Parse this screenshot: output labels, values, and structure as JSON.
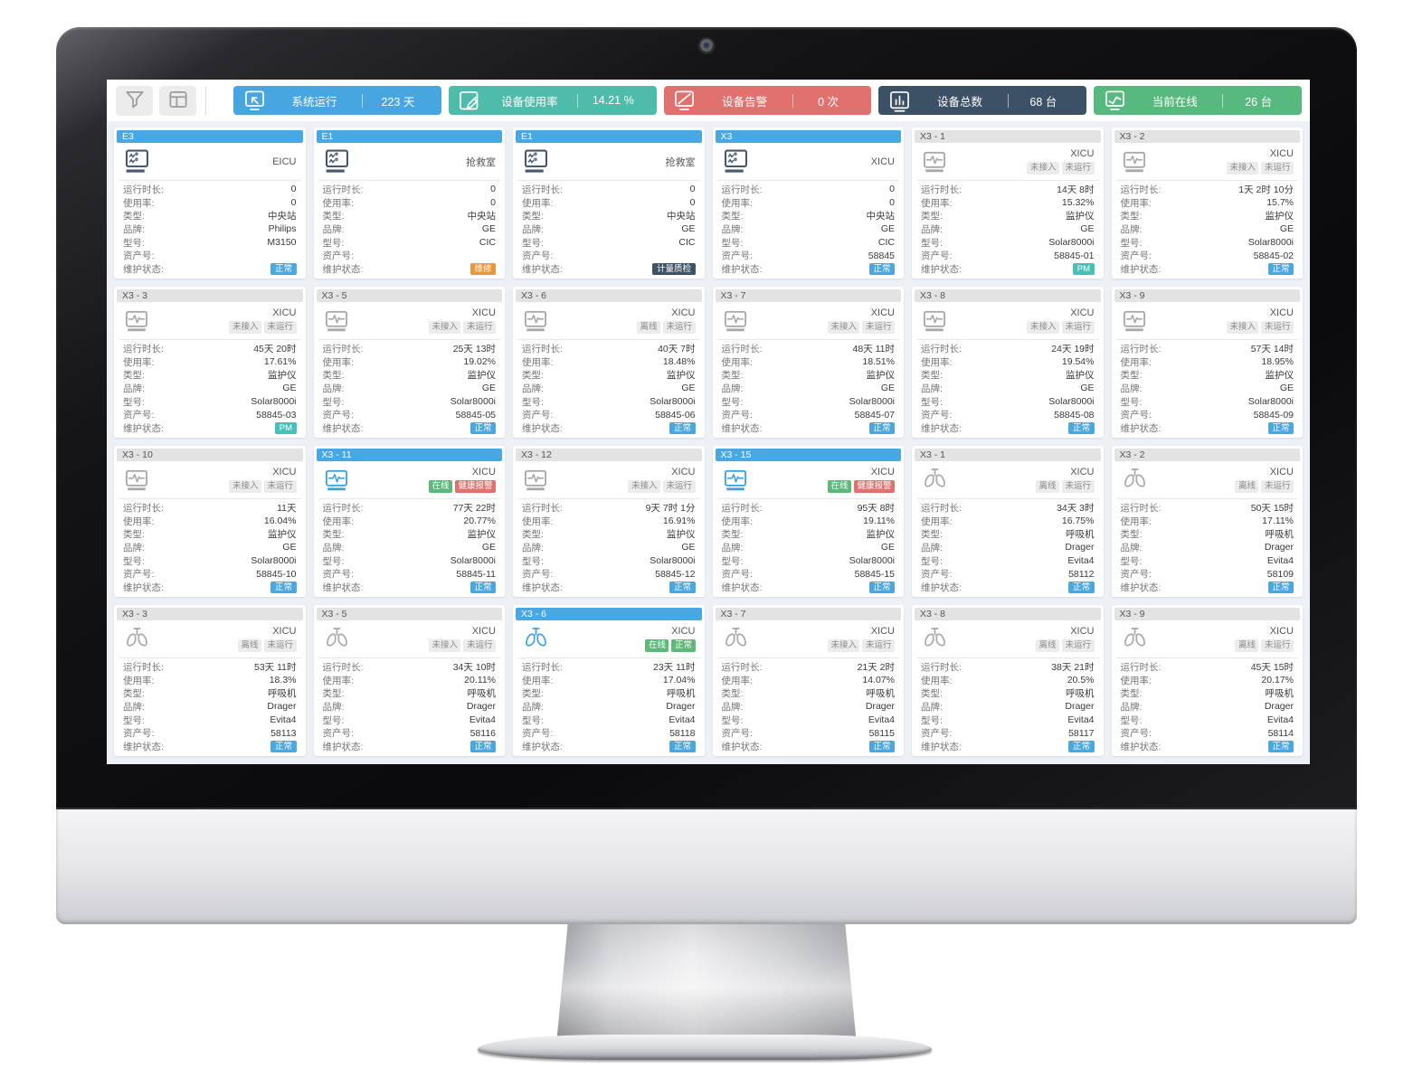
{
  "colors": {
    "accent_blue": "#49a7e1",
    "teal": "#4fbcab",
    "red": "#e0716f",
    "navy": "#3d5166",
    "green": "#58b97e",
    "orange": "#e8973d",
    "pm_teal": "#45c1b7"
  },
  "toolbar": {
    "buttons": [
      {
        "name": "filter",
        "icon": "filter"
      },
      {
        "name": "layout",
        "icon": "layout"
      }
    ],
    "stats": [
      {
        "icon": "system-run",
        "label": "系统运行",
        "value": "223 天",
        "color": "#47a5e0"
      },
      {
        "icon": "usage-rate",
        "label": "设备使用率",
        "value": "14.21 %",
        "color": "#4fbcab"
      },
      {
        "icon": "device-alarm",
        "label": "设备告警",
        "value": "0 次",
        "color": "#e0716f"
      },
      {
        "icon": "device-total",
        "label": "设备总数",
        "value": "68 台",
        "color": "#3d5166"
      },
      {
        "icon": "current-online",
        "label": "当前在线",
        "value": "26 台",
        "color": "#58b97e"
      }
    ]
  },
  "field_labels": [
    "运行时长:",
    "使用率:",
    "类型:",
    "品牌:",
    "型号:",
    "资产号:",
    "维护状态:"
  ],
  "cards": [
    {
      "id": "E3",
      "header_style": "blue",
      "icon": "central-station",
      "icon_style": "navy",
      "location": "EICU",
      "badges": [],
      "values": [
        "0",
        "0",
        "中央站",
        "Philips",
        "M3150",
        ""
      ],
      "status": {
        "text": "正常",
        "type": "normal"
      }
    },
    {
      "id": "E1",
      "header_style": "blue",
      "icon": "central-station",
      "icon_style": "navy",
      "location": "抢救室",
      "badges": [],
      "values": [
        "0",
        "0",
        "中央站",
        "GE",
        "CIC",
        ""
      ],
      "status": {
        "text": "维修",
        "type": "repair"
      }
    },
    {
      "id": "E1",
      "header_style": "blue",
      "icon": "central-station",
      "icon_style": "navy",
      "location": "抢救室",
      "badges": [],
      "values": [
        "0",
        "0",
        "中央站",
        "GE",
        "CIC",
        ""
      ],
      "status": {
        "text": "计量质检",
        "type": "metrology"
      }
    },
    {
      "id": "X3",
      "header_style": "blue",
      "icon": "central-station",
      "icon_style": "navy",
      "location": "XICU",
      "badges": [],
      "values": [
        "0",
        "0",
        "中央站",
        "GE",
        "CIC",
        "58845"
      ],
      "status": {
        "text": "正常",
        "type": "normal"
      }
    },
    {
      "id": "X3 - 1",
      "header_style": "gray",
      "icon": "patient-monitor",
      "icon_style": "gray",
      "location": "XICU",
      "badges": [
        {
          "text": "未接入",
          "type": "gray"
        },
        {
          "text": "未运行",
          "type": "gray"
        }
      ],
      "values": [
        "14天 8时",
        "15.32%",
        "监护仪",
        "GE",
        "Solar8000i",
        "58845-01"
      ],
      "status": {
        "text": "PM",
        "type": "pm"
      }
    },
    {
      "id": "X3 - 2",
      "header_style": "gray",
      "icon": "patient-monitor",
      "icon_style": "gray",
      "location": "XICU",
      "badges": [
        {
          "text": "未接入",
          "type": "gray"
        },
        {
          "text": "未运行",
          "type": "gray"
        }
      ],
      "values": [
        "1天 2时 10分",
        "15.7%",
        "监护仪",
        "GE",
        "Solar8000i",
        "58845-02"
      ],
      "status": {
        "text": "正常",
        "type": "normal"
      }
    },
    {
      "id": "X3 - 3",
      "header_style": "gray",
      "icon": "patient-monitor",
      "icon_style": "gray",
      "location": "XICU",
      "badges": [
        {
          "text": "未接入",
          "type": "gray"
        },
        {
          "text": "未运行",
          "type": "gray"
        }
      ],
      "values": [
        "45天 20时",
        "17.61%",
        "监护仪",
        "GE",
        "Solar8000i",
        "58845-03"
      ],
      "status": {
        "text": "PM",
        "type": "pm"
      }
    },
    {
      "id": "X3 - 5",
      "header_style": "gray",
      "icon": "patient-monitor",
      "icon_style": "gray",
      "location": "XICU",
      "badges": [
        {
          "text": "未接入",
          "type": "gray"
        },
        {
          "text": "未运行",
          "type": "gray"
        }
      ],
      "values": [
        "25天 13时",
        "19.02%",
        "监护仪",
        "GE",
        "Solar8000i",
        "58845-05"
      ],
      "status": {
        "text": "正常",
        "type": "normal"
      }
    },
    {
      "id": "X3 - 6",
      "header_style": "gray",
      "icon": "patient-monitor",
      "icon_style": "gray",
      "location": "XICU",
      "badges": [
        {
          "text": "离线",
          "type": "gray"
        },
        {
          "text": "未运行",
          "type": "gray"
        }
      ],
      "values": [
        "40天 7时",
        "18.48%",
        "监护仪",
        "GE",
        "Solar8000i",
        "58845-06"
      ],
      "status": {
        "text": "正常",
        "type": "normal"
      }
    },
    {
      "id": "X3 - 7",
      "header_style": "gray",
      "icon": "patient-monitor",
      "icon_style": "gray",
      "location": "XICU",
      "badges": [
        {
          "text": "未接入",
          "type": "gray"
        },
        {
          "text": "未运行",
          "type": "gray"
        }
      ],
      "values": [
        "48天 11时",
        "18.51%",
        "监护仪",
        "GE",
        "Solar8000i",
        "58845-07"
      ],
      "status": {
        "text": "正常",
        "type": "normal"
      }
    },
    {
      "id": "X3 - 8",
      "header_style": "gray",
      "icon": "patient-monitor",
      "icon_style": "gray",
      "location": "XICU",
      "badges": [
        {
          "text": "未接入",
          "type": "gray"
        },
        {
          "text": "未运行",
          "type": "gray"
        }
      ],
      "values": [
        "24天 19时",
        "19.54%",
        "监护仪",
        "GE",
        "Solar8000i",
        "58845-08"
      ],
      "status": {
        "text": "正常",
        "type": "normal"
      }
    },
    {
      "id": "X3 - 9",
      "header_style": "gray",
      "icon": "patient-monitor",
      "icon_style": "gray",
      "location": "XICU",
      "badges": [
        {
          "text": "未接入",
          "type": "gray"
        },
        {
          "text": "未运行",
          "type": "gray"
        }
      ],
      "values": [
        "57天 14时",
        "18.95%",
        "监护仪",
        "GE",
        "Solar8000i",
        "58845-09"
      ],
      "status": {
        "text": "正常",
        "type": "normal"
      }
    },
    {
      "id": "X3 - 10",
      "header_style": "gray",
      "icon": "patient-monitor",
      "icon_style": "gray",
      "location": "XICU",
      "badges": [
        {
          "text": "未接入",
          "type": "gray"
        },
        {
          "text": "未运行",
          "type": "gray"
        }
      ],
      "values": [
        "11天",
        "16.04%",
        "监护仪",
        "GE",
        "Solar8000i",
        "58845-10"
      ],
      "status": {
        "text": "正常",
        "type": "normal"
      }
    },
    {
      "id": "X3 - 11",
      "header_style": "blue",
      "icon": "patient-monitor",
      "icon_style": "blue",
      "location": "XICU",
      "badges": [
        {
          "text": "在线",
          "type": "green"
        },
        {
          "text": "健康报警",
          "type": "red"
        }
      ],
      "values": [
        "77天 22时",
        "20.77%",
        "监护仪",
        "GE",
        "Solar8000i",
        "58845-11"
      ],
      "status": {
        "text": "正常",
        "type": "normal"
      }
    },
    {
      "id": "X3 - 12",
      "header_style": "gray",
      "icon": "patient-monitor",
      "icon_style": "gray",
      "location": "XICU",
      "badges": [
        {
          "text": "未接入",
          "type": "gray"
        },
        {
          "text": "未运行",
          "type": "gray"
        }
      ],
      "values": [
        "9天 7时 1分",
        "16.91%",
        "监护仪",
        "GE",
        "Solar8000i",
        "58845-12"
      ],
      "status": {
        "text": "正常",
        "type": "normal"
      }
    },
    {
      "id": "X3 - 15",
      "header_style": "blue",
      "icon": "patient-monitor",
      "icon_style": "blue",
      "location": "XICU",
      "badges": [
        {
          "text": "在线",
          "type": "green"
        },
        {
          "text": "健康报警",
          "type": "red"
        }
      ],
      "values": [
        "95天 8时",
        "19.11%",
        "监护仪",
        "GE",
        "Solar8000i",
        "58845-15"
      ],
      "status": {
        "text": "正常",
        "type": "normal"
      }
    },
    {
      "id": "X3 - 1",
      "header_style": "gray",
      "icon": "ventilator",
      "icon_style": "gray",
      "location": "XICU",
      "badges": [
        {
          "text": "离线",
          "type": "gray"
        },
        {
          "text": "未运行",
          "type": "gray"
        }
      ],
      "values": [
        "34天 3时",
        "16.75%",
        "呼吸机",
        "Drager",
        "Evita4",
        "58112"
      ],
      "status": {
        "text": "正常",
        "type": "normal"
      }
    },
    {
      "id": "X3 - 2",
      "header_style": "gray",
      "icon": "ventilator",
      "icon_style": "gray",
      "location": "XICU",
      "badges": [
        {
          "text": "离线",
          "type": "gray"
        },
        {
          "text": "未运行",
          "type": "gray"
        }
      ],
      "values": [
        "50天 15时",
        "17.11%",
        "呼吸机",
        "Drager",
        "Evita4",
        "58109"
      ],
      "status": {
        "text": "正常",
        "type": "normal"
      }
    },
    {
      "id": "X3 - 3",
      "header_style": "gray",
      "icon": "ventilator",
      "icon_style": "gray",
      "location": "XICU",
      "badges": [
        {
          "text": "离线",
          "type": "gray"
        },
        {
          "text": "未运行",
          "type": "gray"
        }
      ],
      "values": [
        "53天 11时",
        "18.3%",
        "呼吸机",
        "Drager",
        "Evita4",
        "58113"
      ],
      "status": {
        "text": "正常",
        "type": "normal"
      }
    },
    {
      "id": "X3 - 5",
      "header_style": "gray",
      "icon": "ventilator",
      "icon_style": "gray",
      "location": "XICU",
      "badges": [
        {
          "text": "未接入",
          "type": "gray"
        },
        {
          "text": "未运行",
          "type": "gray"
        }
      ],
      "values": [
        "34天 10时",
        "20.11%",
        "呼吸机",
        "Drager",
        "Evita4",
        "58116"
      ],
      "status": {
        "text": "正常",
        "type": "normal"
      }
    },
    {
      "id": "X3 - 6",
      "header_style": "blue",
      "icon": "ventilator",
      "icon_style": "blue",
      "location": "XICU",
      "badges": [
        {
          "text": "在线",
          "type": "green"
        },
        {
          "text": "正常",
          "type": "green"
        }
      ],
      "values": [
        "23天 11时",
        "17.04%",
        "呼吸机",
        "Drager",
        "Evita4",
        "58118"
      ],
      "status": {
        "text": "正常",
        "type": "normal"
      }
    },
    {
      "id": "X3 - 7",
      "header_style": "gray",
      "icon": "ventilator",
      "icon_style": "gray",
      "location": "XICU",
      "badges": [
        {
          "text": "未接入",
          "type": "gray"
        },
        {
          "text": "未运行",
          "type": "gray"
        }
      ],
      "values": [
        "21天 2时",
        "14.07%",
        "呼吸机",
        "Drager",
        "Evita4",
        "58115"
      ],
      "status": {
        "text": "正常",
        "type": "normal"
      }
    },
    {
      "id": "X3 - 8",
      "header_style": "gray",
      "icon": "ventilator",
      "icon_style": "gray",
      "location": "XICU",
      "badges": [
        {
          "text": "离线",
          "type": "gray"
        },
        {
          "text": "未运行",
          "type": "gray"
        }
      ],
      "values": [
        "38天 21时",
        "20.5%",
        "呼吸机",
        "Drager",
        "Evita4",
        "58117"
      ],
      "status": {
        "text": "正常",
        "type": "normal"
      }
    },
    {
      "id": "X3 - 9",
      "header_style": "gray",
      "icon": "ventilator",
      "icon_style": "gray",
      "location": "XICU",
      "badges": [
        {
          "text": "离线",
          "type": "gray"
        },
        {
          "text": "未运行",
          "type": "gray"
        }
      ],
      "values": [
        "45天 15时",
        "20.17%",
        "呼吸机",
        "Drager",
        "Evita4",
        "58114"
      ],
      "status": {
        "text": "正常",
        "type": "normal"
      }
    }
  ]
}
